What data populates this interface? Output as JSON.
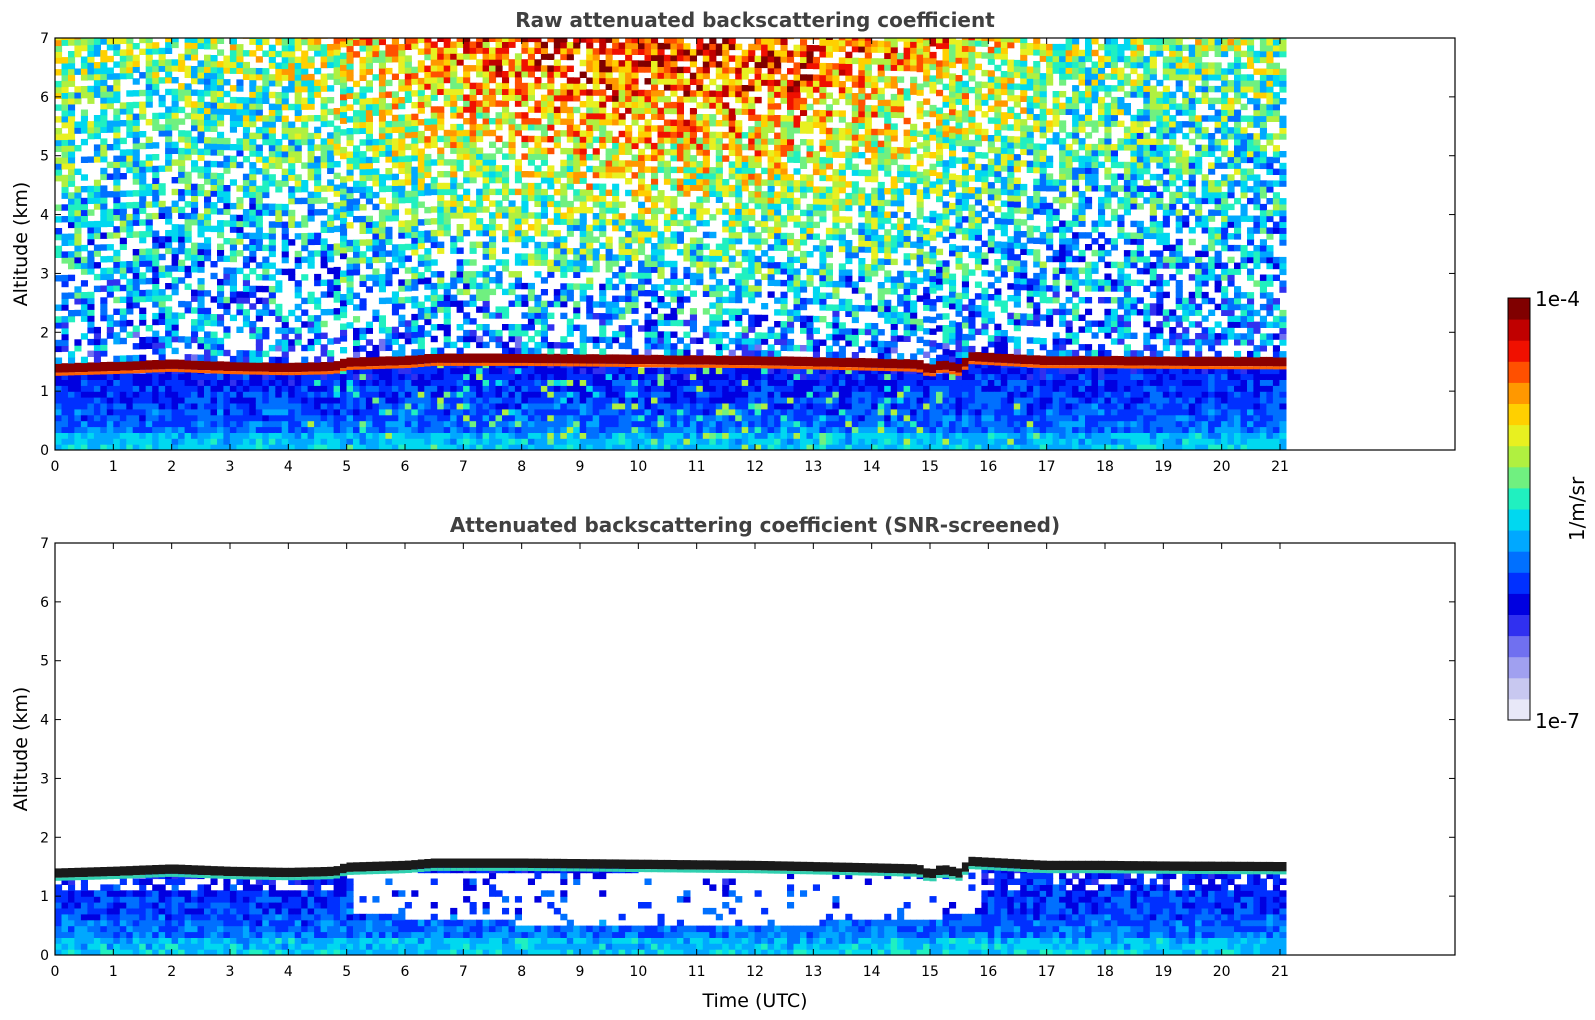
{
  "chart_data": [
    {
      "type": "heatmap",
      "title": "Raw attenuated backscattering coefficient",
      "xlabel": "",
      "ylabel": "Altitude (km)",
      "xlim": [
        0,
        24
      ],
      "ylim": [
        0,
        7
      ],
      "data_xlim": [
        0,
        21.1
      ],
      "xticks": [
        "0",
        "1",
        "2",
        "3",
        "4",
        "5",
        "6",
        "7",
        "8",
        "9",
        "10",
        "11",
        "12",
        "13",
        "14",
        "15",
        "16",
        "17",
        "18",
        "19",
        "20",
        "21"
      ],
      "yticks": [
        "0",
        "1",
        "2",
        "3",
        "4",
        "5",
        "6",
        "7"
      ],
      "screened": false,
      "cloud_base_km": [
        [
          0,
          1.35
        ],
        [
          1,
          1.38
        ],
        [
          2,
          1.42
        ],
        [
          3,
          1.38
        ],
        [
          4,
          1.36
        ],
        [
          4.8,
          1.38
        ],
        [
          5,
          1.45
        ],
        [
          6,
          1.48
        ],
        [
          6.5,
          1.52
        ],
        [
          8,
          1.52
        ],
        [
          10,
          1.5
        ],
        [
          12,
          1.48
        ],
        [
          13.5,
          1.45
        ],
        [
          14.8,
          1.42
        ],
        [
          15,
          1.32
        ],
        [
          15.2,
          1.42
        ],
        [
          15.5,
          1.35
        ],
        [
          15.7,
          1.55
        ],
        [
          17,
          1.48
        ],
        [
          18,
          1.48
        ],
        [
          19,
          1.47
        ],
        [
          21.1,
          1.46
        ]
      ]
    },
    {
      "type": "heatmap",
      "title": "Attenuated backscattering coefficient (SNR-screened)",
      "xlabel": "Time (UTC)",
      "ylabel": "Altitude (km)",
      "xlim": [
        0,
        24
      ],
      "ylim": [
        0,
        7
      ],
      "data_xlim": [
        0,
        21.1
      ],
      "xticks": [
        "0",
        "1",
        "2",
        "3",
        "4",
        "5",
        "6",
        "7",
        "8",
        "9",
        "10",
        "11",
        "12",
        "13",
        "14",
        "15",
        "16",
        "17",
        "18",
        "19",
        "20",
        "21"
      ],
      "yticks": [
        "0",
        "1",
        "2",
        "3",
        "4",
        "5",
        "6",
        "7"
      ],
      "screened": true,
      "cloud_base_km": [
        [
          0,
          1.35
        ],
        [
          1,
          1.38
        ],
        [
          2,
          1.42
        ],
        [
          3,
          1.38
        ],
        [
          4,
          1.36
        ],
        [
          4.8,
          1.38
        ],
        [
          5,
          1.45
        ],
        [
          6,
          1.48
        ],
        [
          6.5,
          1.52
        ],
        [
          8,
          1.52
        ],
        [
          10,
          1.5
        ],
        [
          12,
          1.48
        ],
        [
          13.5,
          1.45
        ],
        [
          14.8,
          1.42
        ],
        [
          15,
          1.32
        ],
        [
          15.2,
          1.42
        ],
        [
          15.5,
          1.35
        ],
        [
          15.7,
          1.55
        ],
        [
          17,
          1.48
        ],
        [
          18,
          1.48
        ],
        [
          19,
          1.47
        ],
        [
          21.1,
          1.46
        ]
      ]
    }
  ],
  "colorbar": {
    "max_label": "1e-4",
    "min_label": "1e-7",
    "unit_label": "1/m/sr",
    "scale": "log",
    "colors": [
      "#e8e8f8",
      "#c8c8f0",
      "#a0a0f0",
      "#7070f0",
      "#3030f0",
      "#0000e0",
      "#0030ff",
      "#0070ff",
      "#00a8ff",
      "#00d8f0",
      "#20f0c0",
      "#70f080",
      "#b0f040",
      "#e8f020",
      "#ffd000",
      "#ff9800",
      "#ff5000",
      "#f01000",
      "#c00000",
      "#800000"
    ]
  }
}
